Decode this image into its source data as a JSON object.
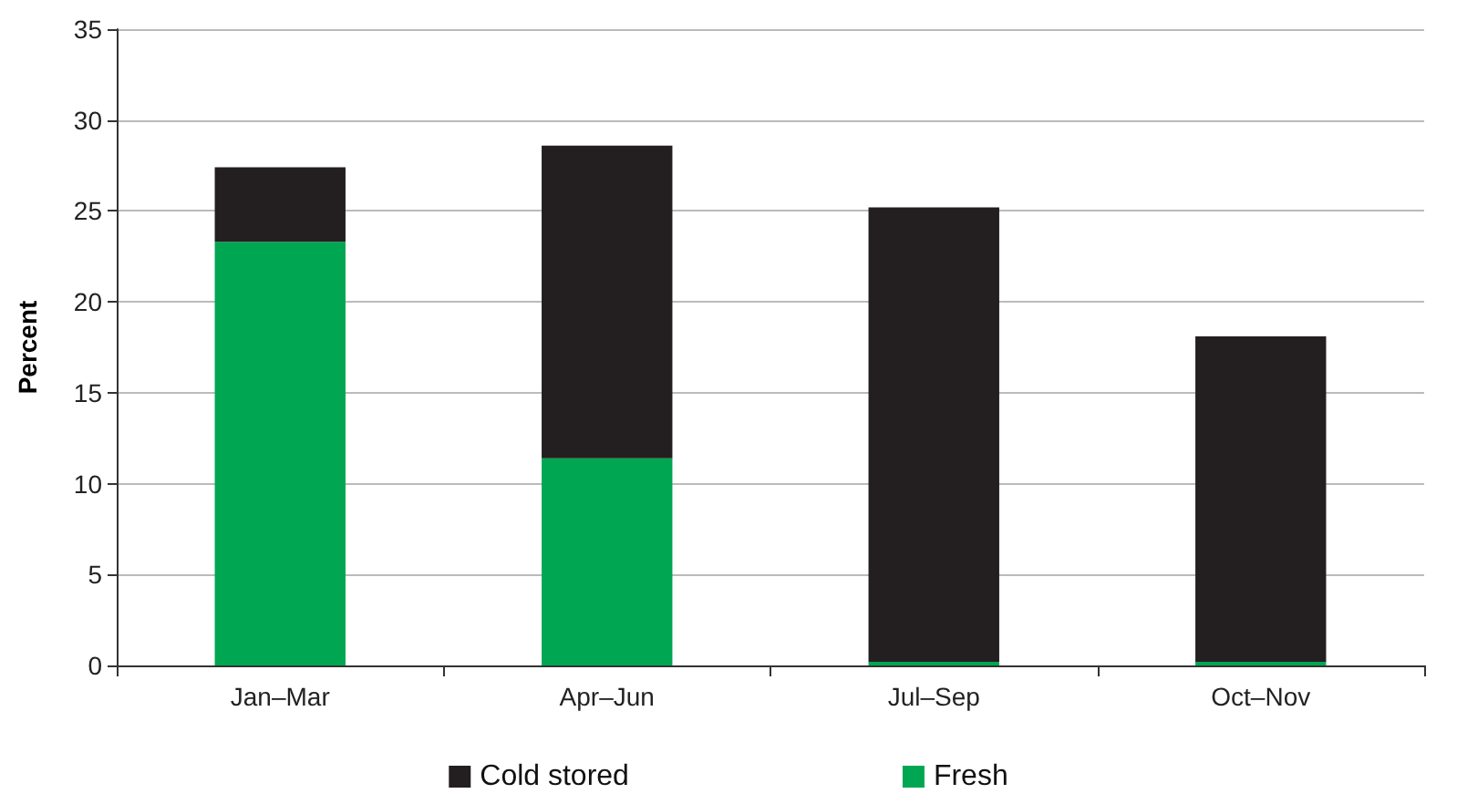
{
  "chart_data": {
    "type": "bar",
    "ylabel": "Percent",
    "categories": [
      "Jan–Mar",
      "Apr–Jun",
      "Jul–Sep",
      "Oct–Nov"
    ],
    "series": [
      {
        "name": "Fresh",
        "color": "#00a651",
        "values": [
          23.3,
          11.4,
          0.2,
          0.2
        ]
      },
      {
        "name": "Cold stored",
        "color": "#231f20",
        "values": [
          4.1,
          17.2,
          25.0,
          17.9
        ]
      }
    ],
    "stacked": true,
    "ylim": [
      0,
      35
    ],
    "yticks": [
      0,
      5,
      10,
      15,
      20,
      25,
      30,
      35
    ],
    "grid": "y",
    "legend": "bottom"
  }
}
